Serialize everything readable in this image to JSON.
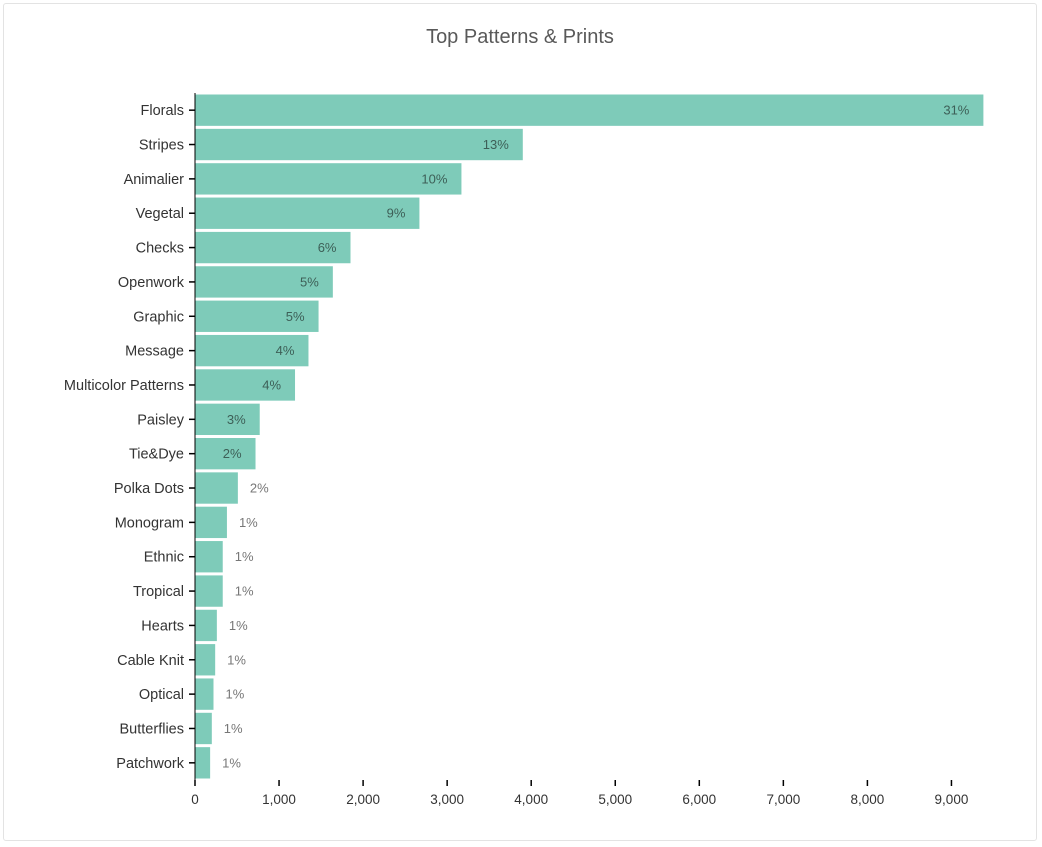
{
  "chart_data": {
    "type": "bar",
    "orientation": "horizontal",
    "title": "Top Patterns & Prints",
    "xlabel": "",
    "ylabel": "",
    "xlim": [
      0,
      9400
    ],
    "x_ticks": [
      0,
      1000,
      2000,
      3000,
      4000,
      5000,
      6000,
      7000,
      8000,
      9000
    ],
    "x_tick_labels": [
      "0",
      "1,000",
      "2,000",
      "3,000",
      "4,000",
      "5,000",
      "6,000",
      "7,000",
      "8,000",
      "9,000"
    ],
    "grid": false,
    "legend": "none",
    "bar_color": "#7ecbb9",
    "categories": [
      "Florals",
      "Stripes",
      "Animalier",
      "Vegetal",
      "Checks",
      "Openwork",
      "Graphic",
      "Message",
      "Multicolor Patterns",
      "Paisley",
      "Tie&Dye",
      "Polka Dots",
      "Monogram",
      "Ethnic",
      "Tropical",
      "Hearts",
      "Cable Knit",
      "Optical",
      "Butterflies",
      "Patchwork"
    ],
    "values": [
      9380,
      3900,
      3170,
      2670,
      1850,
      1640,
      1470,
      1350,
      1190,
      770,
      720,
      510,
      380,
      330,
      330,
      260,
      240,
      220,
      200,
      180
    ],
    "labels": [
      "31%",
      "13%",
      "10%",
      "9%",
      "6%",
      "5%",
      "5%",
      "4%",
      "4%",
      "3%",
      "2%",
      "2%",
      "1%",
      "1%",
      "1%",
      "1%",
      "1%",
      "1%",
      "1%",
      "1%"
    ]
  }
}
